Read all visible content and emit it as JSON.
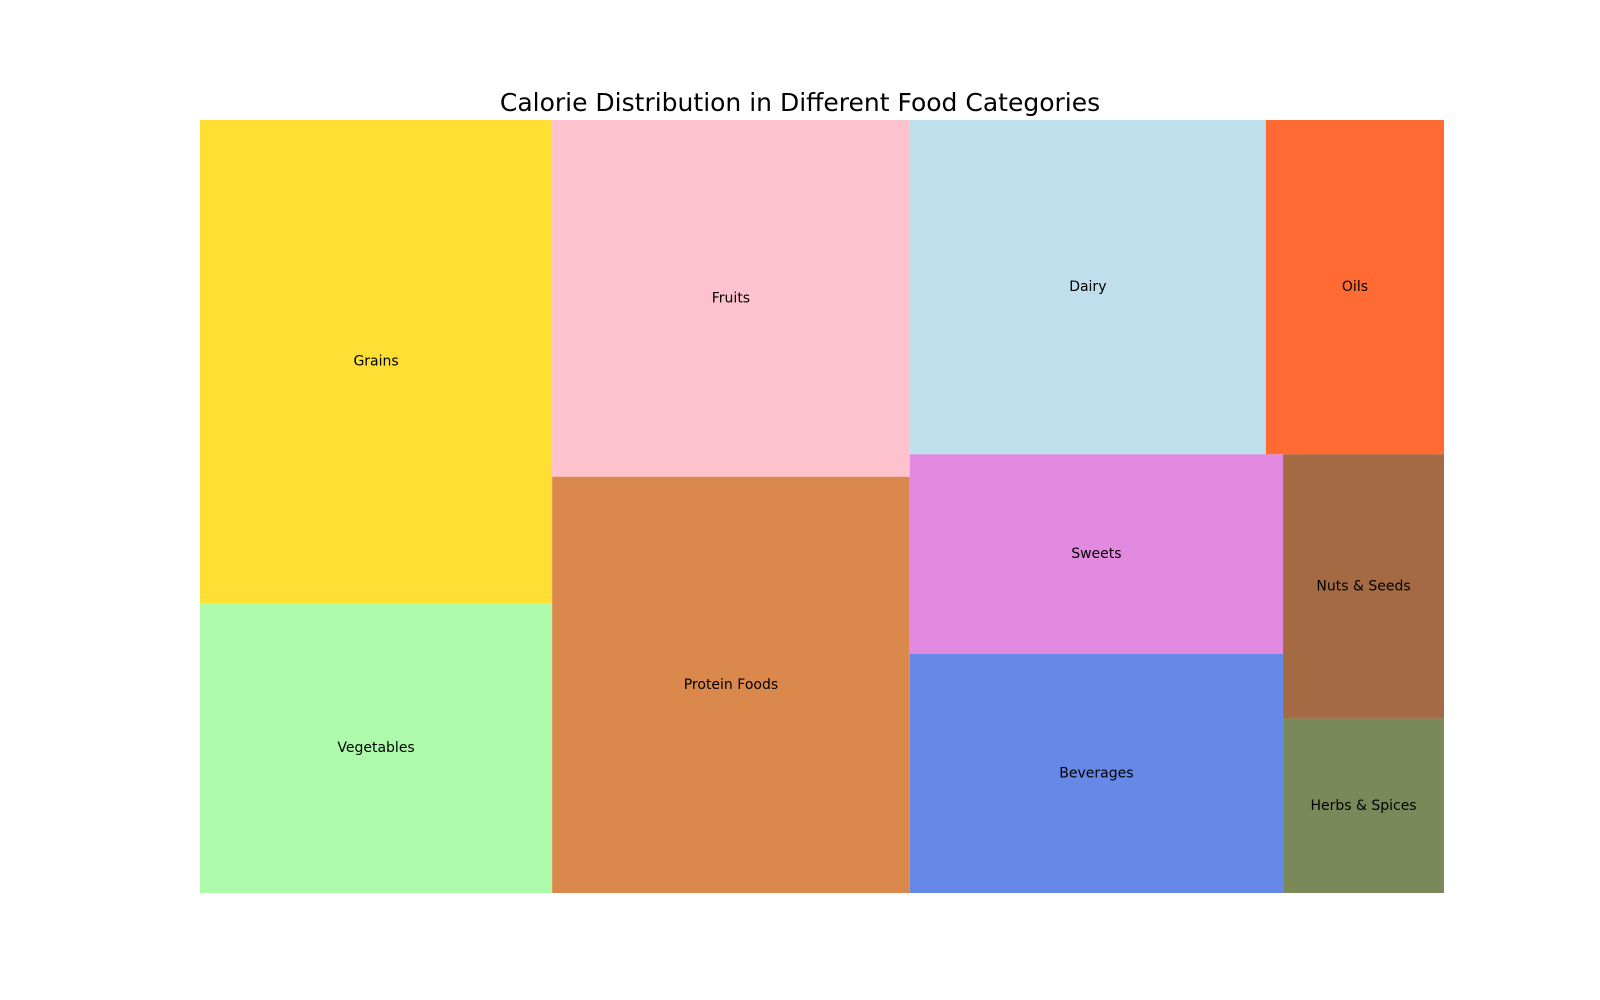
{
  "chart_data": {
    "type": "treemap",
    "title": "Calorie Distribution in Different Food Categories",
    "categories": [
      "Grains",
      "Vegetables",
      "Fruits",
      "Protein Foods",
      "Dairy",
      "Oils",
      "Sweets",
      "Beverages",
      "Nuts & Seeds",
      "Herbs & Spices"
    ],
    "values": [
      20,
      12,
      15,
      17.5,
      14,
      7,
      8.75,
      10.5,
      5,
      3.3
    ],
    "colors": [
      "#FFDF33",
      "#ADFBAA",
      "#FDC2CD",
      "#DB884C",
      "#BEDFEB",
      "#FF6B33",
      "#E18ADF",
      "#6688E6",
      "#A36A43",
      "#7A8959"
    ]
  }
}
